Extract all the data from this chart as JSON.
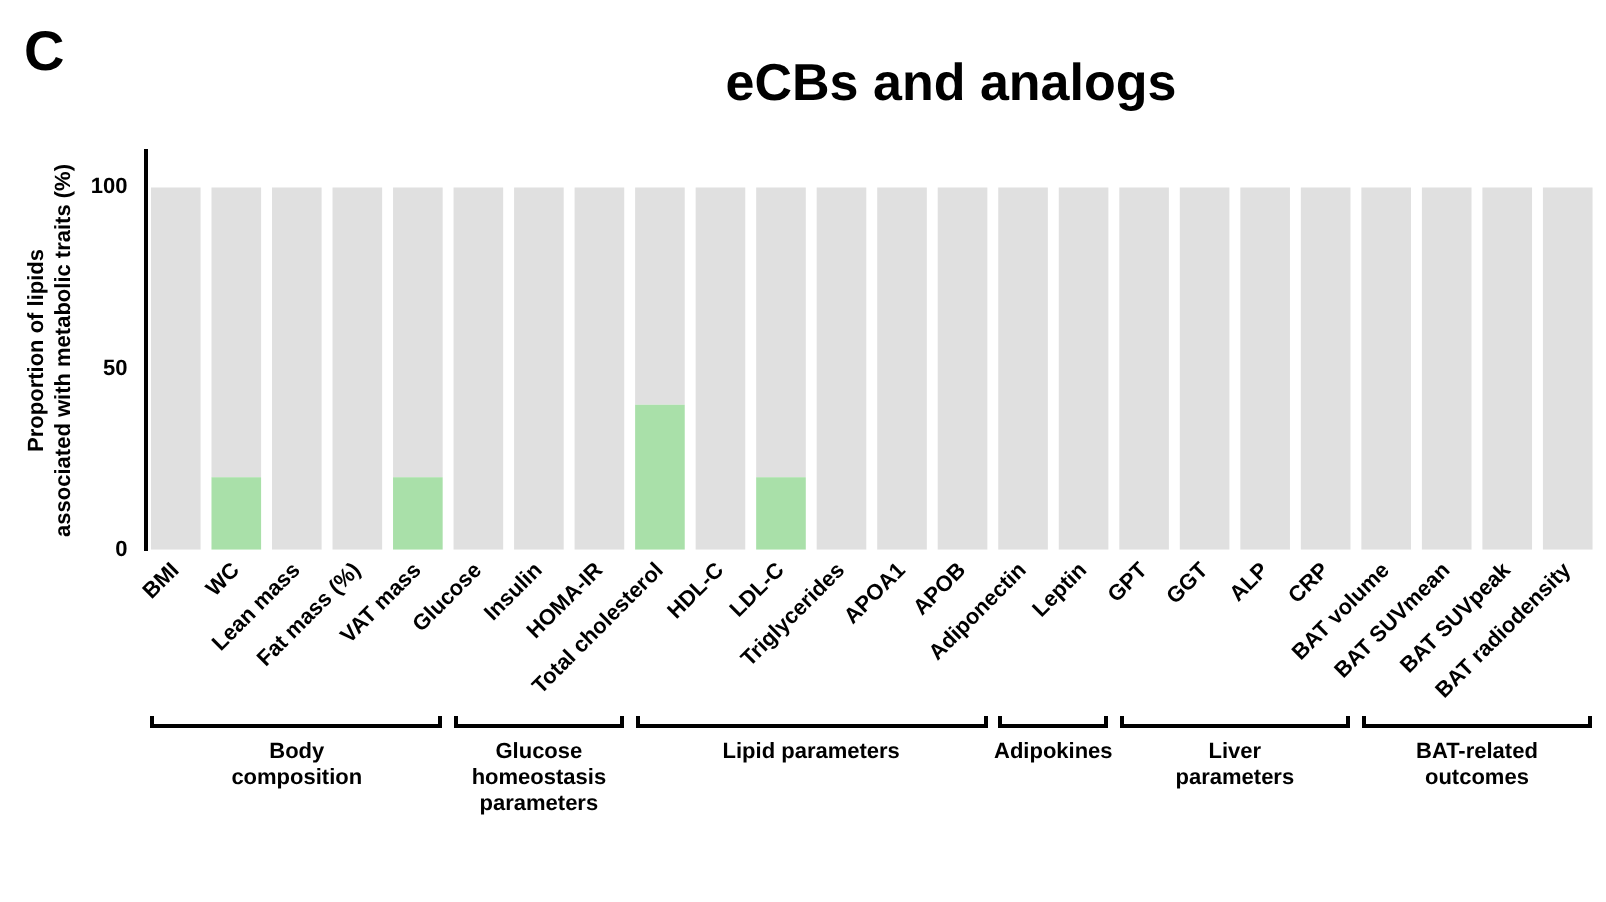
{
  "chart_data": {
    "type": "bar",
    "title": "eCBs and analogs",
    "ylabel": "Proportion of lipids\nassociated with metabolic traits (%)",
    "categories": [
      "BMI",
      "WC",
      "Lean mass",
      "Fat mass (%)",
      "VAT mass",
      "Glucose",
      "Insulin",
      "HOMA-IR",
      "Total cholesterol",
      "HDL-C",
      "LDL-C",
      "Triglycerides",
      "APOA1",
      "APOB",
      "Adiponectin",
      "Leptin",
      "GPT",
      "GGT",
      "ALP",
      "CRP",
      "BAT volume",
      "BAT SUVmean",
      "BAT SUVpeak",
      "BAT radiodensity"
    ],
    "stacked": true,
    "series": [
      {
        "color": "#a9e0a9",
        "values": [
          0,
          20,
          0,
          0,
          20,
          0,
          0,
          0,
          40,
          0,
          20,
          0,
          0,
          0,
          0,
          0,
          0,
          0,
          0,
          0,
          0,
          0,
          0,
          0
        ]
      },
      {
        "color": "#e0e0e0",
        "values": [
          100,
          80,
          100,
          100,
          80,
          100,
          100,
          100,
          60,
          100,
          80,
          100,
          100,
          100,
          100,
          100,
          100,
          100,
          100,
          100,
          100,
          100,
          100,
          100
        ]
      }
    ],
    "ylim": [
      0,
      110
    ],
    "yticks": [
      0,
      50,
      100
    ],
    "grid": false,
    "legend": false,
    "annotations": [
      "C",
      "Body\ncomposition",
      "Glucose\nhomeostasis\nparameters",
      "Lipid parameters",
      "Adipokines",
      "Liver\nparameters",
      "BAT-related\noutcomes"
    ]
  }
}
